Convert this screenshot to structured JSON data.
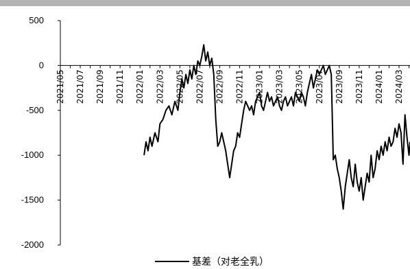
{
  "chart_data": {
    "type": "line",
    "title": "",
    "xlabel": "",
    "ylabel": "",
    "ylim": [
      -2000,
      500
    ],
    "yticks": [
      500,
      0,
      -500,
      -1000,
      -1500,
      -2000
    ],
    "x_tick_labels": [
      "2021/05",
      "2021/07",
      "2021/09",
      "2021/11",
      "2022/01",
      "2022/03",
      "2022/05",
      "2022/07",
      "2022/09",
      "2022/11",
      "2023/01",
      "2023/03",
      "2023/05",
      "2023/07",
      "2023/09",
      "2023/11",
      "2024/01",
      "2024/03"
    ],
    "x_tick_index": [
      0,
      2,
      4,
      6,
      8,
      10,
      12,
      14,
      16,
      18,
      20,
      22,
      24,
      26,
      28,
      30,
      32,
      34
    ],
    "y_negative_color": "#ff0000",
    "y_positive_color": "#000000",
    "line_color": "#000000",
    "legend_position": "bottom-center",
    "series": [
      {
        "name": "基差（对老全乳）",
        "points": [
          [
            8.4,
            -1000
          ],
          [
            8.6,
            -850
          ],
          [
            8.8,
            -950
          ],
          [
            9.0,
            -800
          ],
          [
            9.2,
            -900
          ],
          [
            9.5,
            -750
          ],
          [
            9.8,
            -850
          ],
          [
            10.0,
            -650
          ],
          [
            10.3,
            -600
          ],
          [
            10.6,
            -500
          ],
          [
            10.9,
            -450
          ],
          [
            11.2,
            -550
          ],
          [
            11.5,
            -400
          ],
          [
            11.8,
            -500
          ],
          [
            12.0,
            -300
          ],
          [
            12.2,
            -150
          ],
          [
            12.4,
            -250
          ],
          [
            12.6,
            -100
          ],
          [
            12.8,
            -200
          ],
          [
            13.0,
            -50
          ],
          [
            13.2,
            -150
          ],
          [
            13.4,
            0
          ],
          [
            13.6,
            -100
          ],
          [
            13.8,
            50
          ],
          [
            14.0,
            0
          ],
          [
            14.2,
            100
          ],
          [
            14.4,
            230
          ],
          [
            14.6,
            50
          ],
          [
            14.8,
            150
          ],
          [
            15.0,
            0
          ],
          [
            15.2,
            80
          ],
          [
            15.4,
            -100
          ],
          [
            15.6,
            -600
          ],
          [
            15.8,
            -900
          ],
          [
            16.0,
            -850
          ],
          [
            16.2,
            -750
          ],
          [
            16.4,
            -850
          ],
          [
            16.6,
            -950
          ],
          [
            16.8,
            -1100
          ],
          [
            17.0,
            -1250
          ],
          [
            17.2,
            -1100
          ],
          [
            17.4,
            -950
          ],
          [
            17.6,
            -900
          ],
          [
            17.8,
            -750
          ],
          [
            18.0,
            -800
          ],
          [
            18.2,
            -650
          ],
          [
            18.4,
            -500
          ],
          [
            18.6,
            -400
          ],
          [
            18.8,
            -450
          ],
          [
            19.0,
            -500
          ],
          [
            19.2,
            -450
          ],
          [
            19.4,
            -550
          ],
          [
            19.6,
            -400
          ],
          [
            19.8,
            -350
          ],
          [
            20.0,
            -300
          ],
          [
            20.2,
            -450
          ],
          [
            20.4,
            -500
          ],
          [
            20.6,
            -400
          ],
          [
            20.8,
            -300
          ],
          [
            21.0,
            -400
          ],
          [
            21.2,
            -350
          ],
          [
            21.4,
            -450
          ],
          [
            21.6,
            -400
          ],
          [
            21.8,
            -350
          ],
          [
            22.0,
            -450
          ],
          [
            22.2,
            -500
          ],
          [
            22.4,
            -400
          ],
          [
            22.6,
            -350
          ],
          [
            22.8,
            -450
          ],
          [
            23.0,
            -400
          ],
          [
            23.2,
            -350
          ],
          [
            23.4,
            -450
          ],
          [
            23.6,
            -300
          ],
          [
            23.8,
            -350
          ],
          [
            24.0,
            -400
          ],
          [
            24.2,
            -300
          ],
          [
            24.4,
            -350
          ],
          [
            24.6,
            -450
          ],
          [
            24.8,
            -300
          ],
          [
            25.0,
            -200
          ],
          [
            25.2,
            -100
          ],
          [
            25.4,
            -250
          ],
          [
            25.6,
            -150
          ],
          [
            25.8,
            -50
          ],
          [
            26.0,
            -100
          ],
          [
            26.2,
            -50
          ],
          [
            26.4,
            0
          ],
          [
            26.6,
            -100
          ],
          [
            26.8,
            -50
          ],
          [
            27.0,
            0
          ],
          [
            27.2,
            -100
          ],
          [
            27.4,
            -1050
          ],
          [
            27.6,
            -1000
          ],
          [
            27.8,
            -1150
          ],
          [
            28.0,
            -1250
          ],
          [
            28.2,
            -1400
          ],
          [
            28.4,
            -1600
          ],
          [
            28.6,
            -1350
          ],
          [
            28.8,
            -1200
          ],
          [
            29.0,
            -1050
          ],
          [
            29.2,
            -1250
          ],
          [
            29.4,
            -1350
          ],
          [
            29.6,
            -1100
          ],
          [
            29.8,
            -1300
          ],
          [
            30.0,
            -1400
          ],
          [
            30.2,
            -1250
          ],
          [
            30.4,
            -1500
          ],
          [
            30.6,
            -1350
          ],
          [
            30.8,
            -1200
          ],
          [
            31.0,
            -1300
          ],
          [
            31.2,
            -1000
          ],
          [
            31.4,
            -1250
          ],
          [
            31.6,
            -1150
          ],
          [
            31.8,
            -950
          ],
          [
            32.0,
            -1050
          ],
          [
            32.2,
            -900
          ],
          [
            32.4,
            -1000
          ],
          [
            32.6,
            -850
          ],
          [
            32.8,
            -950
          ],
          [
            33.0,
            -800
          ],
          [
            33.2,
            -900
          ],
          [
            33.4,
            -850
          ],
          [
            33.6,
            -700
          ],
          [
            33.8,
            -800
          ],
          [
            34.0,
            -650
          ],
          [
            34.2,
            -750
          ],
          [
            34.4,
            -1100
          ],
          [
            34.6,
            -550
          ],
          [
            34.8,
            -800
          ],
          [
            35.0,
            -1000
          ],
          [
            35.1,
            -850
          ]
        ]
      }
    ]
  }
}
